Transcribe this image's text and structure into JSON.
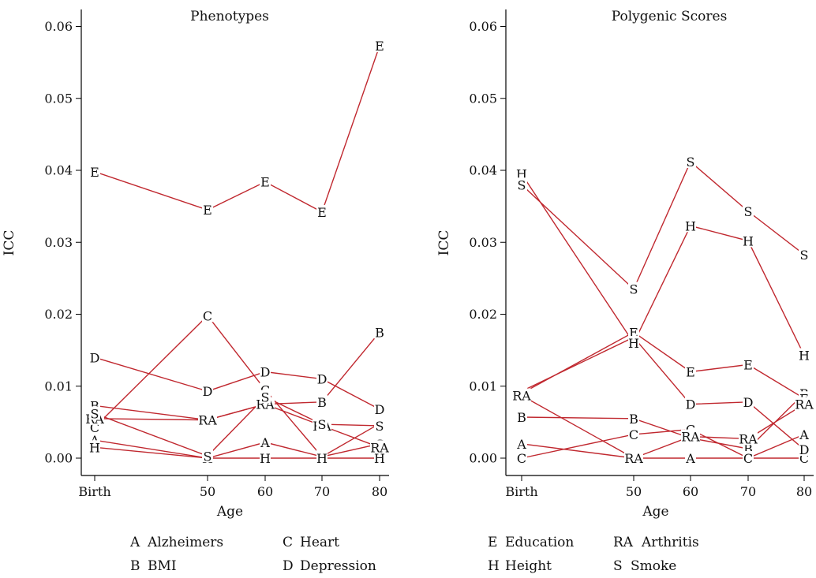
{
  "chart_data": [
    {
      "type": "line",
      "title": "Phenotypes",
      "xlabel": "Age",
      "ylabel": "ICC",
      "x": [
        0,
        50,
        60,
        70,
        80
      ],
      "x_tick_labels": [
        "Birth",
        "50",
        "60",
        "70",
        "80"
      ],
      "ylim": [
        -0.002,
        0.062
      ],
      "y_ticks": [
        0.0,
        0.01,
        0.02,
        0.03,
        0.04,
        0.05,
        0.06
      ],
      "y_tick_labels": [
        "0.00",
        "0.01",
        "0.02",
        "0.03",
        "0.04",
        "0.05",
        "0.06"
      ],
      "series": [
        {
          "name": "Alzheimers",
          "marker": "A",
          "values": [
            0.0025,
            0.0,
            0.0022,
            0.0002,
            0.0048
          ]
        },
        {
          "name": "BMI",
          "marker": "B",
          "values": [
            0.0073,
            0.0053,
            0.0075,
            0.0078,
            0.0175
          ]
        },
        {
          "name": "Heart",
          "marker": "C",
          "values": [
            0.0043,
            0.0198,
            0.0095,
            0.0002,
            0.002
          ]
        },
        {
          "name": "Depression",
          "marker": "D",
          "values": [
            0.014,
            0.0093,
            0.012,
            0.011,
            0.0068
          ]
        },
        {
          "name": "Education",
          "marker": "E",
          "values": [
            0.0398,
            0.0345,
            0.0384,
            0.0342,
            0.0573
          ]
        },
        {
          "name": "Height",
          "marker": "H",
          "values": [
            0.0015,
            0.0,
            0.0,
            0.0,
            0.0
          ]
        },
        {
          "name": "Arthritis",
          "marker": "RA",
          "values": [
            0.0055,
            0.0053,
            0.0075,
            0.0045,
            0.0015
          ]
        },
        {
          "name": "Smoke",
          "marker": "S",
          "values": [
            0.0062,
            0.0003,
            0.0085,
            0.0047,
            0.0045
          ]
        }
      ]
    },
    {
      "type": "line",
      "title": "Polygenic Scores",
      "xlabel": "Age",
      "ylabel": "ICC",
      "x": [
        0,
        50,
        60,
        70,
        80
      ],
      "x_tick_labels": [
        "Birth",
        "50",
        "60",
        "70",
        "80"
      ],
      "ylim": [
        -0.002,
        0.062
      ],
      "y_ticks": [
        0.0,
        0.01,
        0.02,
        0.03,
        0.04,
        0.05,
        0.06
      ],
      "y_tick_labels": [
        "0.00",
        "0.01",
        "0.02",
        "0.03",
        "0.04",
        "0.05",
        "0.06"
      ],
      "series": [
        {
          "name": "Alzheimers",
          "marker": "A",
          "values": [
            0.002,
            0.0,
            0.0,
            0.0,
            0.0033
          ]
        },
        {
          "name": "BMI",
          "marker": "B",
          "values": [
            0.0057,
            0.0055,
            0.0028,
            0.0013,
            0.009
          ]
        },
        {
          "name": "Heart",
          "marker": "C",
          "values": [
            0.0,
            0.0033,
            0.004,
            0.0,
            0.0
          ]
        },
        {
          "name": "Depression",
          "marker": "D",
          "values": [
            0.0093,
            0.0168,
            0.0075,
            0.0078,
            0.0012
          ]
        },
        {
          "name": "Education",
          "marker": "E",
          "values": [
            0.009,
            0.0175,
            0.012,
            0.013,
            0.0083
          ]
        },
        {
          "name": "Height",
          "marker": "H",
          "values": [
            0.0395,
            0.016,
            0.0323,
            0.0302,
            0.0143
          ]
        },
        {
          "name": "Arthritis",
          "marker": "RA",
          "values": [
            0.0087,
            0.0,
            0.003,
            0.0027,
            0.0075
          ]
        },
        {
          "name": "Smoke",
          "marker": "S",
          "values": [
            0.038,
            0.0235,
            0.0412,
            0.0343,
            0.0283
          ]
        }
      ]
    }
  ],
  "legend": [
    {
      "items": [
        {
          "marker": "A",
          "label": "Alzheimers"
        },
        {
          "marker": "C",
          "label": "Heart"
        },
        {
          "marker": "B",
          "label": "BMI"
        },
        {
          "marker": "D",
          "label": "Depression"
        }
      ]
    },
    {
      "items": [
        {
          "marker": "E",
          "label": "Education"
        },
        {
          "marker": "RA",
          "label": "Arthritis"
        },
        {
          "marker": "H",
          "label": "Height"
        },
        {
          "marker": "S",
          "label": "Smoke"
        }
      ]
    }
  ],
  "colors": {
    "line": "#c0282f",
    "axis": "#000000",
    "text": "#111111"
  }
}
